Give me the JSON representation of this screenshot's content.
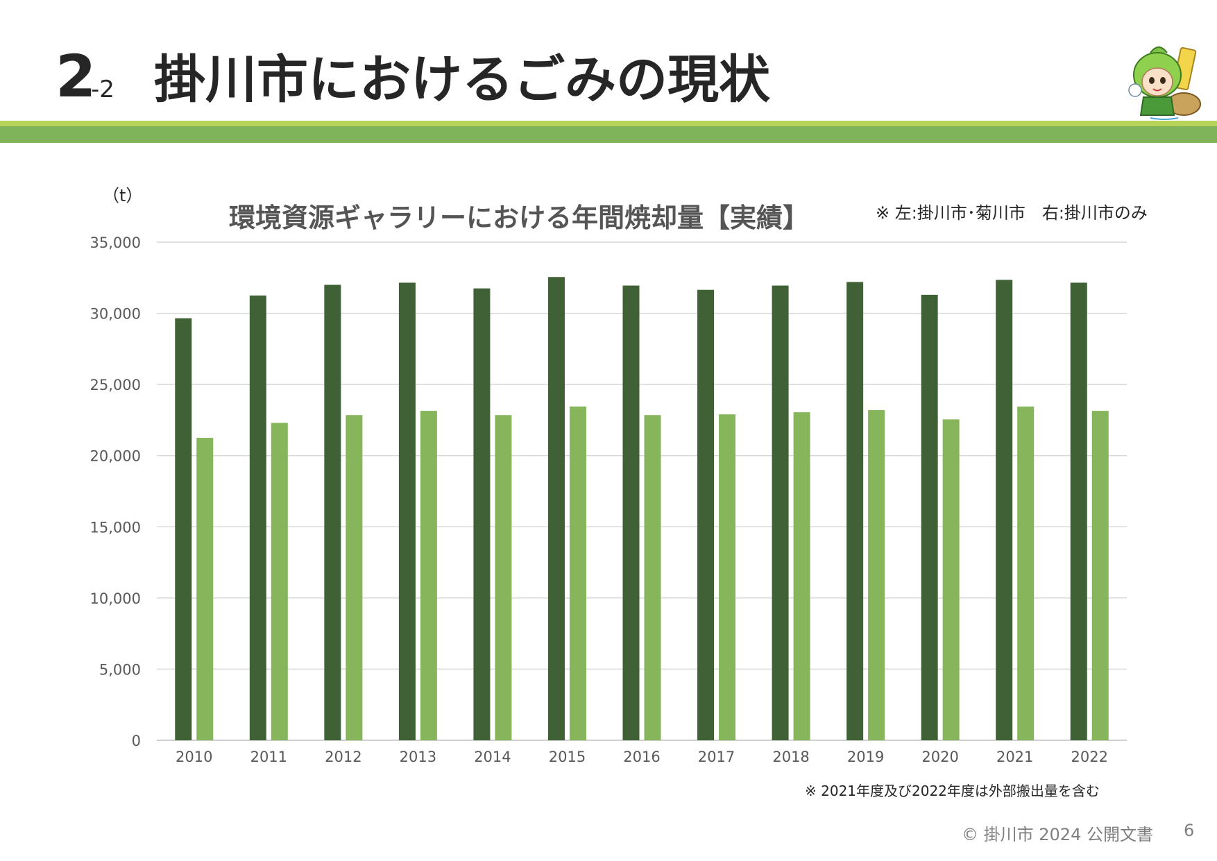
{
  "header": {
    "section_number": "2",
    "section_sub": "-2",
    "title": "掛川市におけるごみの現状"
  },
  "colors": {
    "series_left": "#3f6135",
    "series_right": "#86b55c",
    "band_light": "#b8d35a",
    "band_dark": "#7fb45a"
  },
  "chart_data": {
    "type": "bar",
    "title": "環境資源ギャラリーにおける年間焼却量【実績】",
    "unit_label": "（t）",
    "legend_note": "※ 左:掛川市･菊川市　右:掛川市のみ",
    "ylim": [
      0,
      35000
    ],
    "y_ticks": [
      "0",
      "5,000",
      "10,000",
      "15,000",
      "20,000",
      "25,000",
      "30,000",
      "35,000"
    ],
    "y_tick_values": [
      0,
      5000,
      10000,
      15000,
      20000,
      25000,
      30000,
      35000
    ],
    "categories": [
      "2010",
      "2011",
      "2012",
      "2013",
      "2014",
      "2015",
      "2016",
      "2017",
      "2018",
      "2019",
      "2020",
      "2021",
      "2022"
    ],
    "series": [
      {
        "name": "掛川市･菊川市",
        "values": [
          29650,
          31250,
          32000,
          32150,
          31750,
          32550,
          31950,
          31650,
          31950,
          32200,
          31300,
          32350,
          32150
        ]
      },
      {
        "name": "掛川市のみ",
        "values": [
          21250,
          22300,
          22850,
          23150,
          22850,
          23450,
          22850,
          22900,
          23050,
          23200,
          22550,
          23450,
          23150
        ]
      }
    ]
  },
  "footnote": "※ 2021年度及び2022年度は外部搬出量を含む",
  "footer": {
    "copyright": "© 掛川市 2024 公開文書",
    "page_number": "6"
  }
}
